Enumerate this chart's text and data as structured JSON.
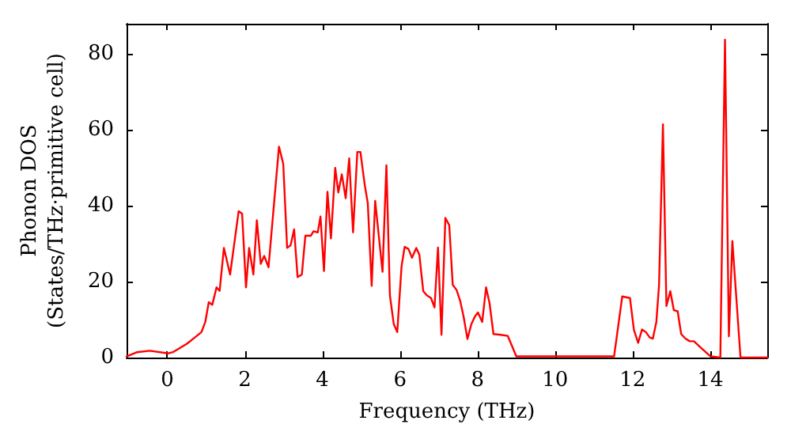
{
  "chart_data": {
    "type": "line",
    "xlabel": "Frequency (THz)",
    "ylabel": "Phonon DOS\n(States/THz·primitive cell)",
    "xlim": [
      -1.05,
      15.47
    ],
    "ylim": [
      0,
      88
    ],
    "xticks": [
      0,
      2,
      4,
      6,
      8,
      10,
      12,
      14
    ],
    "yticks": [
      0,
      20,
      40,
      60,
      80
    ],
    "grid": false,
    "marker": "none",
    "line_style": "solid",
    "series": [
      {
        "color": "#ff0000",
        "x": [
          -1.05,
          -0.79,
          -0.45,
          0.03,
          0.16,
          0.5,
          0.71,
          0.88,
          0.98,
          1.07,
          1.16,
          1.27,
          1.35,
          1.46,
          1.62,
          1.84,
          1.93,
          2.03,
          2.11,
          2.22,
          2.31,
          2.41,
          2.5,
          2.61,
          2.88,
          2.99,
          3.09,
          3.18,
          3.27,
          3.36,
          3.47,
          3.56,
          3.7,
          3.77,
          3.88,
          3.95,
          4.04,
          4.13,
          4.22,
          4.33,
          4.41,
          4.5,
          4.6,
          4.69,
          4.79,
          4.9,
          4.98,
          5.09,
          5.17,
          5.27,
          5.36,
          5.55,
          5.65,
          5.74,
          5.84,
          5.93,
          6.04,
          6.12,
          6.22,
          6.31,
          6.42,
          6.5,
          6.6,
          6.69,
          6.8,
          6.89,
          6.98,
          7.07,
          7.17,
          7.27,
          7.36,
          7.46,
          7.55,
          7.64,
          7.74,
          7.84,
          7.93,
          8.01,
          8.12,
          8.22,
          8.31,
          8.41,
          8.6,
          8.78,
          9.0,
          11.52,
          11.73,
          11.93,
          12.03,
          12.14,
          12.24,
          12.34,
          12.44,
          12.52,
          12.61,
          12.68,
          12.78,
          12.87,
          12.97,
          13.06,
          13.16,
          13.25,
          13.36,
          13.47,
          13.58,
          13.77,
          14.01,
          14.26,
          14.38,
          14.48,
          14.57,
          14.78,
          15.47
        ],
        "values": [
          0.3,
          1.4,
          1.8,
          1.1,
          1.5,
          3.6,
          5.3,
          6.7,
          9.4,
          14.6,
          13.9,
          18.5,
          17.6,
          28.9,
          21.9,
          38.6,
          37.9,
          18.5,
          28.9,
          21.9,
          36.2,
          24.7,
          26.8,
          23.8,
          55.6,
          51.1,
          28.9,
          29.6,
          33.8,
          21.2,
          21.9,
          32.1,
          32.1,
          33.3,
          33,
          37.2,
          22.8,
          43.7,
          31.4,
          50,
          43.5,
          48.3,
          42,
          52.5,
          33,
          54.2,
          54.2,
          45.6,
          40.7,
          18.9,
          41.3,
          22.6,
          50.7,
          16.4,
          8.8,
          6.7,
          24,
          29.2,
          28.6,
          26.3,
          28.9,
          27.1,
          17.5,
          16.4,
          15.7,
          13.2,
          29,
          6,
          36.8,
          34.9,
          19.2,
          17.8,
          15,
          10.8,
          4.9,
          8.8,
          10.8,
          11.9,
          9.4,
          18.5,
          14.3,
          6.2,
          6,
          5.7,
          0.3,
          0.3,
          16.1,
          15.7,
          7.4,
          3.9,
          7.4,
          6.7,
          5.3,
          5,
          9.4,
          19.2,
          61.5,
          13.6,
          17.5,
          12.5,
          12.2,
          6.2,
          5,
          4.3,
          4.3,
          2.5,
          0.3,
          0,
          83.8,
          5.6,
          30.7,
          0,
          0
        ]
      }
    ]
  }
}
